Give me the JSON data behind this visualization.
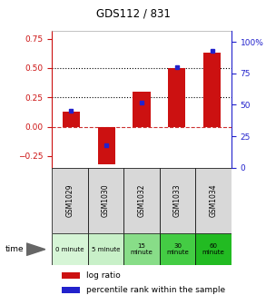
{
  "title": "GDS112 / 831",
  "samples": [
    "GSM1029",
    "GSM1030",
    "GSM1032",
    "GSM1033",
    "GSM1034"
  ],
  "log_ratio": [
    0.13,
    -0.32,
    0.3,
    0.5,
    0.63
  ],
  "percentile_rank": [
    45,
    18,
    52,
    80,
    93
  ],
  "time_labels": [
    "0 minute",
    "5 minute",
    "15\nminute",
    "30\nminute",
    "60\nminute"
  ],
  "time_colors": [
    "#d6f5d6",
    "#c8f0c8",
    "#88dd88",
    "#44cc44",
    "#22bb22"
  ],
  "bar_color": "#cc1111",
  "dot_color": "#2222cc",
  "ylim_left": [
    -0.35,
    0.82
  ],
  "ylim_right": [
    0,
    109
  ],
  "yticks_left": [
    -0.25,
    0,
    0.25,
    0.5,
    0.75
  ],
  "yticks_right": [
    0,
    25,
    50,
    75,
    100
  ],
  "hline_zero_color": "#cc3333",
  "hline_25_color": "#000000",
  "hline_50_color": "#000000",
  "sample_bg": "#d8d8d8",
  "chart_bg": "white"
}
